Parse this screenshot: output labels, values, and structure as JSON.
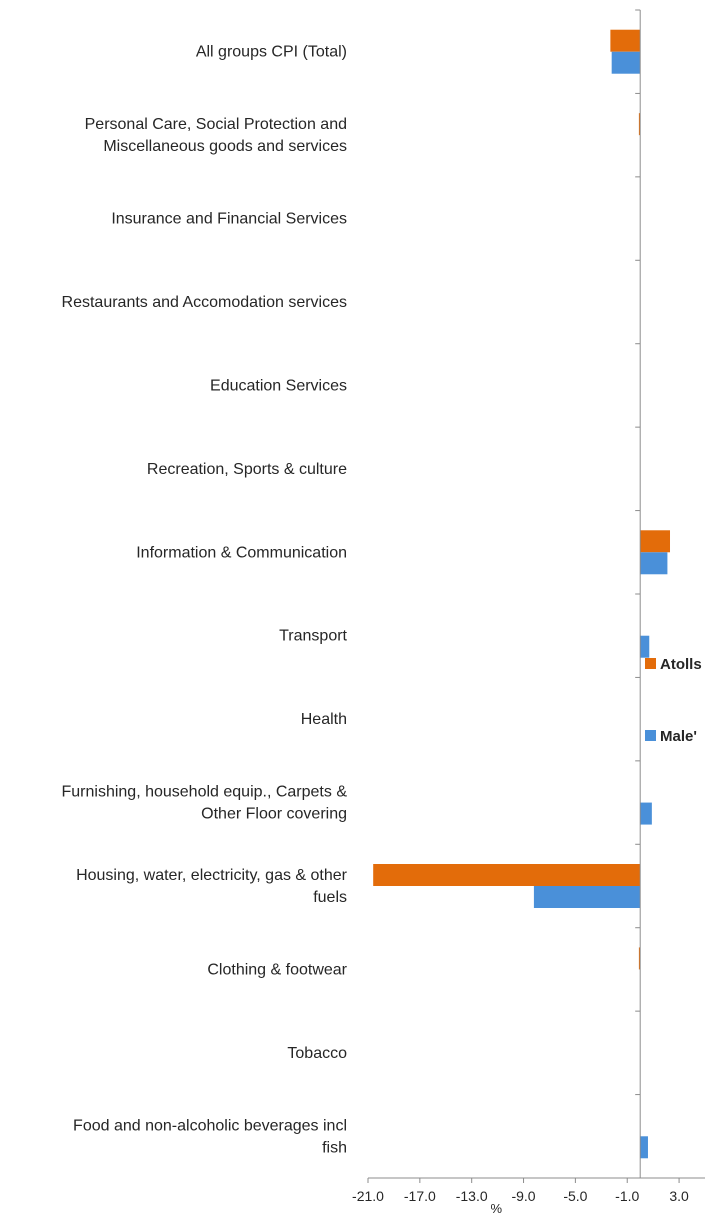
{
  "chart_data": {
    "type": "bar",
    "orientation": "horizontal",
    "title": "",
    "xlabel": "%",
    "ylabel": "",
    "xlim": [
      -21.0,
      5.0
    ],
    "xticks": [
      "-21.0",
      "-17.0",
      "-13.0",
      "-9.0",
      "-5.0",
      "-1.0",
      "3.0"
    ],
    "tick_values": [
      -21.0,
      -17.0,
      -13.0,
      -9.0,
      -5.0,
      -1.0,
      3.0
    ],
    "grid": false,
    "legend_position": "right",
    "categories": [
      [
        "All groups CPI (Total)"
      ],
      [
        "Personal Care, Social Protection and",
        "Miscellaneous goods and services"
      ],
      [
        "Insurance and Financial Services"
      ],
      [
        "Restaurants and Accomodation services"
      ],
      [
        "Education Services"
      ],
      [
        "Recreation, Sports & culture"
      ],
      [
        "Information & Communication"
      ],
      [
        "Transport"
      ],
      [
        "Health"
      ],
      [
        "Furnishing, household equip., Carpets &",
        "Other Floor covering"
      ],
      [
        "Housing, water, electricity, gas & other",
        "fuels"
      ],
      [
        "Clothing & footwear"
      ],
      [
        "Tobacco"
      ],
      [
        "Food and non-alcoholic beverages incl",
        "fish"
      ]
    ],
    "series": [
      {
        "name": "Atolls",
        "color": "#E36C0A",
        "values": [
          -2.3,
          -0.1,
          0.0,
          0.0,
          0.0,
          0.0,
          2.3,
          0.0,
          0.0,
          0.0,
          -20.6,
          -0.1,
          0.0,
          0.0
        ]
      },
      {
        "name": "Male'",
        "color": "#4A90D9",
        "values": [
          -2.2,
          0.0,
          0.0,
          0.0,
          0.0,
          0.0,
          2.1,
          0.7,
          0.0,
          0.9,
          -8.2,
          0.0,
          0.0,
          0.6
        ]
      }
    ]
  }
}
